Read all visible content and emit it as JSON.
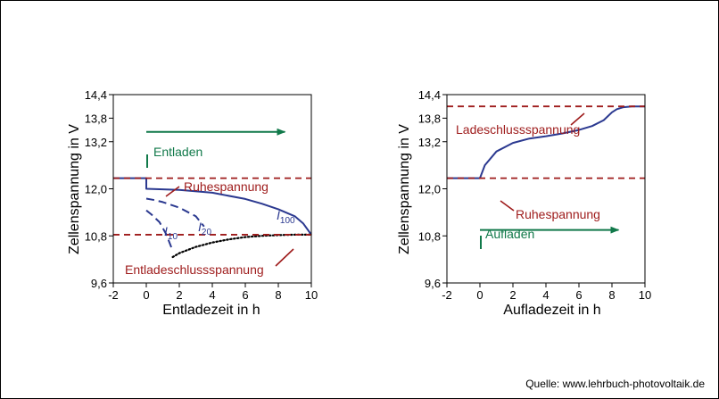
{
  "source": "Quelle: www.lehrbuch-photovoltaik.de",
  "colors": {
    "blue": "#2b3990",
    "red": "#9e1b1b",
    "green": "#11794a",
    "black": "#000000"
  },
  "chart_data": [
    {
      "type": "line",
      "xlabel": "Entladezeit  in h",
      "ylabel": "Zellenspannung  in V",
      "xlim": [
        -2,
        10
      ],
      "ylim": [
        9.6,
        14.4
      ],
      "xticks": [
        -2,
        0,
        2,
        4,
        6,
        8,
        10
      ],
      "yticks": [
        9.6,
        10.8,
        12.0,
        13.2,
        13.8,
        14.4
      ],
      "xtick_labels": [
        "-2",
        "0",
        "2",
        "4",
        "6",
        "8",
        "10"
      ],
      "ytick_labels": [
        "9,6",
        "10,8",
        "12,0",
        "13,2",
        "13,8",
        "14,4"
      ],
      "series": [
        {
          "name": "I100",
          "style": "solid",
          "color": "#2b3990",
          "x": [
            -2,
            0,
            0,
            2,
            4,
            6,
            7,
            8,
            9,
            9.5,
            10
          ],
          "y": [
            12.27,
            12.27,
            12.0,
            11.97,
            11.9,
            11.74,
            11.62,
            11.48,
            11.3,
            11.12,
            10.83
          ]
        },
        {
          "name": "I20",
          "style": "dashed",
          "color": "#2b3990",
          "x": [
            0,
            0.4,
            1,
            2,
            3,
            3.5
          ],
          "y": [
            11.75,
            11.72,
            11.66,
            11.52,
            11.3,
            11.04
          ]
        },
        {
          "name": "I10",
          "style": "dashed",
          "color": "#2b3990",
          "x": [
            0,
            0.3,
            0.8,
            1.2,
            1.6
          ],
          "y": [
            11.45,
            11.35,
            11.15,
            10.85,
            10.42
          ]
        },
        {
          "name": "",
          "style": "dotted",
          "color": "#000000",
          "x": [
            1.6,
            2,
            3,
            4,
            5,
            6,
            7,
            8,
            9,
            10
          ],
          "y": [
            10.26,
            10.36,
            10.52,
            10.63,
            10.71,
            10.77,
            10.8,
            10.82,
            10.83,
            10.83
          ]
        }
      ],
      "reference_lines": [
        {
          "label": "Ruhespannung",
          "y": 12.27,
          "color": "#9e1b1b",
          "style": "dashed"
        },
        {
          "label": "Entladeschlussspannung",
          "y": 10.83,
          "color": "#9e1b1b",
          "style": "dashed"
        }
      ],
      "series_labels": [
        {
          "main": "I",
          "sub": "100",
          "x": 8.8,
          "y": 11.55
        },
        {
          "main": "I",
          "sub": "20",
          "x": 3.1,
          "y": 11.38
        },
        {
          "main": "I",
          "sub": "10",
          "x": 1.1,
          "y": 11.08
        }
      ],
      "arrow": {
        "label": "Entladen",
        "x_start": 0,
        "x_end": 8.4,
        "y": 13.45,
        "color": "#11794a"
      },
      "grid": false
    },
    {
      "type": "line",
      "xlabel": "Aufladezeit  in h",
      "ylabel": "Zellenspannung  in V",
      "xlim": [
        -2,
        10
      ],
      "ylim": [
        9.6,
        14.4
      ],
      "xticks": [
        -2,
        0,
        2,
        4,
        6,
        8,
        10
      ],
      "yticks": [
        9.6,
        10.8,
        12.0,
        13.2,
        13.8,
        14.4
      ],
      "xtick_labels": [
        "-2",
        "0",
        "2",
        "4",
        "6",
        "8",
        "10"
      ],
      "ytick_labels": [
        "9,6",
        "10,8",
        "12,0",
        "13,2",
        "13,8",
        "14,4"
      ],
      "series": [
        {
          "name": "",
          "style": "solid",
          "color": "#2b3990",
          "x": [
            -2,
            0,
            0.3,
            1,
            2,
            3,
            4,
            5,
            6,
            6.8,
            7.5,
            8,
            8.3,
            8.7,
            9.2,
            10
          ],
          "y": [
            12.27,
            12.27,
            12.6,
            12.95,
            13.17,
            13.28,
            13.34,
            13.41,
            13.5,
            13.6,
            13.75,
            13.95,
            14.03,
            14.08,
            14.1,
            14.1
          ]
        }
      ],
      "reference_lines": [
        {
          "label": "Ladeschlussspannung",
          "y": 14.1,
          "color": "#9e1b1b",
          "style": "dashed"
        },
        {
          "label": "Ruhespannung",
          "y": 12.27,
          "color": "#9e1b1b",
          "style": "dashed"
        }
      ],
      "arrow": {
        "label": "Aufladen",
        "x_start": 0,
        "x_end": 8.4,
        "y": 10.95,
        "color": "#11794a"
      },
      "grid": false
    }
  ]
}
